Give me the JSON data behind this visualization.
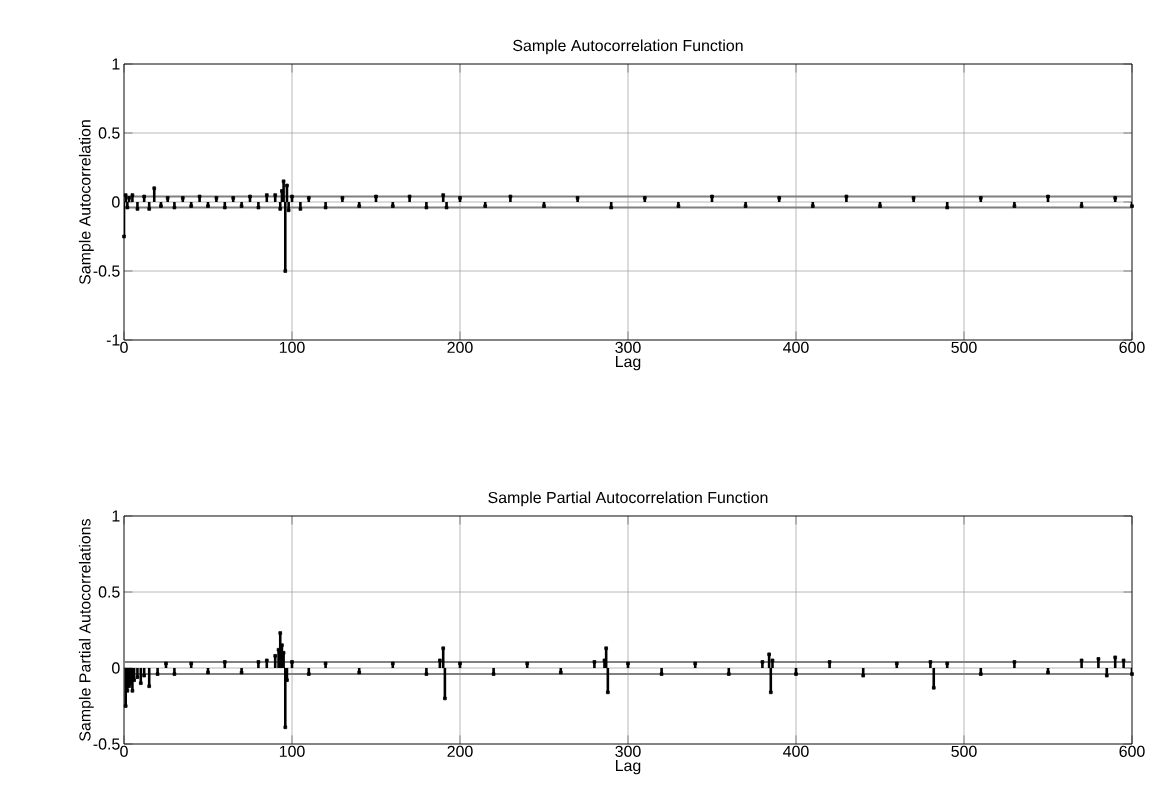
{
  "chart_data": [
    {
      "type": "lollipop",
      "marker": "square",
      "title": "Sample Autocorrelation Function",
      "xlabel": "Lag",
      "ylabel": "Sample Autocorrelation",
      "xlim": [
        0,
        600
      ],
      "xticks": [
        0,
        100,
        200,
        300,
        400,
        500,
        600
      ],
      "ylim": [
        -1,
        1
      ],
      "yticks": [
        -1,
        -0.5,
        0,
        0.5,
        1
      ],
      "grid": true,
      "ref_lines": [
        {
          "axis": "y",
          "value": 0.04,
          "color": "#808080"
        },
        {
          "axis": "y",
          "value": -0.04,
          "color": "#808080"
        }
      ],
      "series": [
        {
          "color": "#000000",
          "x": [
            0,
            1,
            2,
            3,
            5,
            8,
            12,
            15,
            18,
            22,
            26,
            30,
            35,
            40,
            45,
            50,
            55,
            60,
            65,
            70,
            75,
            80,
            85,
            90,
            93,
            94,
            95,
            96,
            97,
            98,
            100,
            105,
            110,
            120,
            130,
            140,
            150,
            160,
            170,
            180,
            190,
            192,
            200,
            215,
            230,
            250,
            270,
            290,
            310,
            330,
            350,
            370,
            390,
            410,
            430,
            450,
            470,
            490,
            510,
            530,
            550,
            570,
            590,
            600
          ],
          "values": [
            -0.25,
            0.05,
            -0.04,
            0.03,
            0.05,
            -0.05,
            0.04,
            -0.05,
            0.1,
            -0.03,
            0.03,
            -0.04,
            0.03,
            -0.03,
            0.04,
            -0.03,
            0.03,
            -0.04,
            0.03,
            -0.03,
            0.04,
            -0.04,
            0.05,
            0.05,
            -0.05,
            0.08,
            0.15,
            -0.5,
            0.12,
            -0.06,
            0.04,
            -0.05,
            0.03,
            -0.04,
            0.03,
            -0.03,
            0.04,
            -0.03,
            0.04,
            -0.04,
            0.05,
            -0.04,
            0.03,
            -0.03,
            0.04,
            -0.03,
            0.03,
            -0.04,
            0.03,
            -0.03,
            0.04,
            -0.03,
            0.03,
            -0.03,
            0.04,
            -0.03,
            0.03,
            -0.04,
            0.03,
            -0.03,
            0.04,
            -0.03,
            0.03,
            -0.03
          ]
        }
      ]
    },
    {
      "type": "lollipop",
      "marker": "square",
      "title": "Sample Partial Autocorrelation Function",
      "xlabel": "Lag",
      "ylabel": "Sample Partial Autocorrelations",
      "xlim": [
        0,
        600
      ],
      "xticks": [
        0,
        100,
        200,
        300,
        400,
        500,
        600
      ],
      "ylim": [
        -0.5,
        1
      ],
      "yticks": [
        -0.5,
        0,
        0.5,
        1
      ],
      "grid": true,
      "ref_lines": [
        {
          "axis": "y",
          "value": 0.04,
          "color": "#808080"
        },
        {
          "axis": "y",
          "value": -0.04,
          "color": "#808080"
        }
      ],
      "series": [
        {
          "color": "#000000",
          "x": [
            1,
            2,
            3,
            4,
            5,
            6,
            8,
            10,
            12,
            15,
            20,
            25,
            30,
            40,
            50,
            60,
            70,
            80,
            85,
            90,
            92,
            93,
            94,
            95,
            96,
            97,
            100,
            110,
            120,
            140,
            160,
            180,
            188,
            190,
            191,
            200,
            220,
            240,
            260,
            280,
            286,
            287,
            288,
            300,
            320,
            340,
            360,
            380,
            384,
            385,
            386,
            400,
            420,
            440,
            460,
            480,
            482,
            490,
            510,
            530,
            550,
            570,
            580,
            585,
            590,
            595,
            600
          ],
          "values": [
            -0.25,
            -0.15,
            -0.12,
            -0.1,
            -0.15,
            -0.08,
            -0.06,
            -0.1,
            -0.05,
            -0.12,
            -0.04,
            0.03,
            -0.04,
            0.03,
            -0.03,
            0.04,
            -0.03,
            0.04,
            0.05,
            0.08,
            0.12,
            0.23,
            0.15,
            0.1,
            -0.39,
            -0.08,
            0.04,
            -0.04,
            0.03,
            -0.03,
            0.03,
            -0.04,
            0.05,
            0.13,
            -0.2,
            0.03,
            -0.04,
            0.03,
            -0.03,
            0.04,
            0.05,
            0.13,
            -0.16,
            0.03,
            -0.04,
            0.03,
            -0.04,
            0.04,
            0.09,
            -0.16,
            0.05,
            -0.04,
            0.04,
            -0.05,
            0.03,
            0.04,
            -0.13,
            0.03,
            -0.04,
            0.04,
            -0.03,
            0.05,
            0.06,
            -0.05,
            0.07,
            0.05,
            -0.04
          ]
        }
      ]
    }
  ]
}
